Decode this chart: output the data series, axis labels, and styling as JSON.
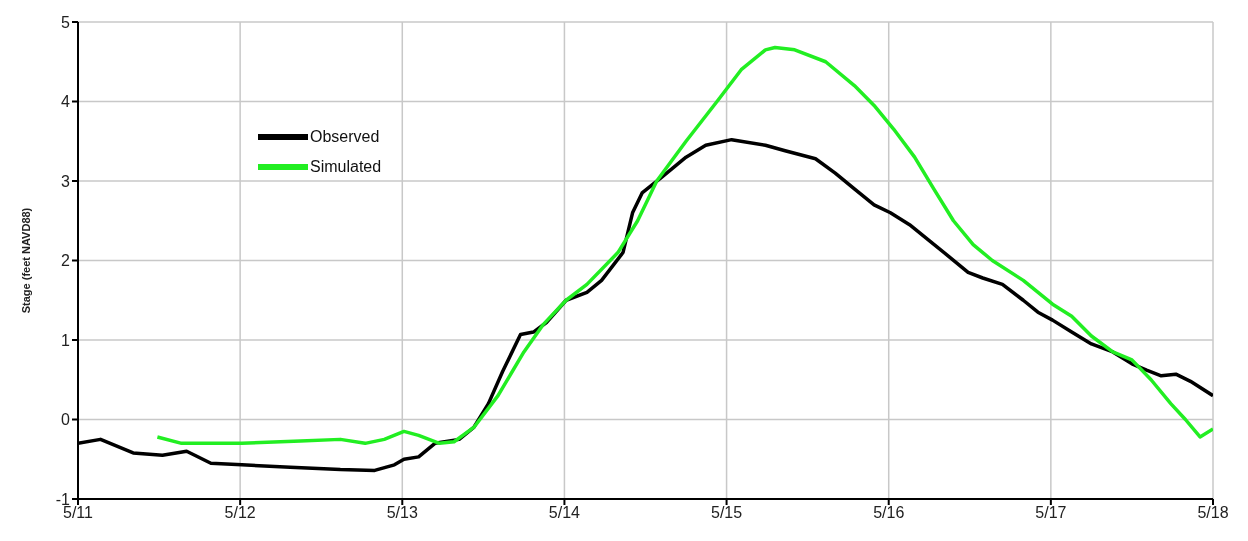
{
  "chart_data": {
    "type": "line",
    "ylabel": "Stage (feet NAVD88)",
    "xlim": [
      "--05-11",
      "--05-18"
    ],
    "ylim": [
      -1,
      5
    ],
    "xticks": [
      {
        "value": "--05-11",
        "label": "5/11"
      },
      {
        "value": "--05-12",
        "label": "5/12"
      },
      {
        "value": "--05-13",
        "label": "5/13"
      },
      {
        "value": "--05-14",
        "label": "5/14"
      },
      {
        "value": "--05-15",
        "label": "5/15"
      },
      {
        "value": "--05-16",
        "label": "5/16"
      },
      {
        "value": "--05-17",
        "label": "5/17"
      },
      {
        "value": "--05-18",
        "label": "5/18"
      }
    ],
    "yticks": [
      -1,
      0,
      1,
      2,
      3,
      4,
      5
    ],
    "grid": true,
    "legend": "top left",
    "marker": "none",
    "line_style": "solid",
    "series": [
      {
        "name": "Observed",
        "color": "#000000",
        "x": [
          "--05-11T00:00",
          "--05-11T03:20",
          "--05-11T08:10",
          "--05-11T12:30",
          "--05-11T16:05",
          "--05-11T19:40",
          "--05-12T00:15",
          "--05-12T07:25",
          "--05-12T14:50",
          "--05-12T19:55",
          "--05-12T22:50",
          "--05-13T00:15",
          "--05-13T02:25",
          "--05-13T04:50",
          "--05-13T08:25",
          "--05-13T10:35",
          "--05-13T12:45",
          "--05-13T14:50",
          "--05-13T17:30",
          "--05-13T19:25",
          "--05-13T21:20",
          "--05-14T00:15",
          "--05-14T03:20",
          "--05-14T05:30",
          "--05-14T08:40",
          "--05-14T10:05",
          "--05-14T11:30",
          "--05-14T14:25",
          "--05-14T18:00",
          "--05-14T20:55",
          "--05-15T00:45",
          "--05-15T05:45",
          "--05-15T08:40",
          "--05-15T13:10",
          "--05-15T16:05",
          "--05-15T18:55",
          "--05-15T21:50",
          "--05-16T00:15",
          "--05-16T03:05",
          "--05-16T06:00",
          "--05-16T08:55",
          "--05-16T11:45",
          "--05-16T13:55",
          "--05-16T16:50",
          "--05-16T19:55",
          "--05-16T22:05",
          "--05-17T00:15",
          "--05-17T03:05",
          "--05-17T06:00",
          "--05-17T09:10",
          "--05-17T12:00",
          "--05-17T14:10",
          "--05-17T16:20",
          "--05-17T18:30",
          "--05-17T20:40",
          "--05-18T00:00"
        ],
        "values": [
          -0.3,
          -0.25,
          -0.42,
          -0.45,
          -0.4,
          -0.55,
          -0.57,
          -0.6,
          -0.63,
          -0.64,
          -0.57,
          -0.5,
          -0.47,
          -0.3,
          -0.25,
          -0.1,
          0.2,
          0.6,
          1.07,
          1.1,
          1.22,
          1.5,
          1.6,
          1.75,
          2.1,
          2.6,
          2.85,
          3.05,
          3.3,
          3.45,
          3.52,
          3.45,
          3.38,
          3.28,
          3.1,
          2.9,
          2.7,
          2.6,
          2.45,
          2.25,
          2.05,
          1.85,
          1.78,
          1.7,
          1.5,
          1.35,
          1.25,
          1.1,
          0.95,
          0.85,
          0.7,
          0.62,
          0.55,
          0.57,
          0.48,
          0.3
        ]
      },
      {
        "name": "Simulated",
        "color": "#22ee22",
        "x": [
          "--05-11T11:45",
          "--05-11T15:20",
          "--05-12T00:15",
          "--05-12T08:55",
          "--05-12T14:50",
          "--05-12T18:30",
          "--05-12T21:20",
          "--05-13T00:15",
          "--05-13T02:25",
          "--05-13T05:30",
          "--05-13T07:40",
          "--05-13T10:35",
          "--05-13T14:10",
          "--05-13T18:00",
          "--05-13T20:55",
          "--05-14T00:15",
          "--05-14T03:20",
          "--05-14T07:55",
          "--05-14T10:50",
          "--05-14T13:40",
          "--05-14T18:00",
          "--05-14T22:35",
          "--05-15T02:10",
          "--05-15T05:45",
          "--05-15T07:10",
          "--05-15T10:05",
          "--05-15T14:40",
          "--05-15T18:55",
          "--05-15T21:50",
          "--05-16T00:45",
          "--05-16T03:50",
          "--05-16T06:40",
          "--05-16T09:35",
          "--05-16T12:30",
          "--05-16T15:20",
          "--05-16T19:55",
          "--05-17T00:15",
          "--05-17T03:05",
          "--05-17T06:00",
          "--05-17T09:10",
          "--05-17T12:00",
          "--05-17T14:50",
          "--05-17T17:45",
          "--05-17T19:55",
          "--05-17T22:05",
          "--05-18T00:00"
        ],
        "values": [
          -0.22,
          -0.3,
          -0.3,
          -0.27,
          -0.25,
          -0.3,
          -0.25,
          -0.15,
          -0.2,
          -0.3,
          -0.28,
          -0.1,
          0.3,
          0.85,
          1.2,
          1.5,
          1.7,
          2.1,
          2.5,
          3.0,
          3.5,
          4.0,
          4.4,
          4.65,
          4.68,
          4.65,
          4.5,
          4.2,
          3.95,
          3.65,
          3.3,
          2.9,
          2.5,
          2.2,
          2.0,
          1.75,
          1.45,
          1.3,
          1.05,
          0.85,
          0.75,
          0.5,
          0.2,
          0.0,
          -0.22,
          -0.12
        ]
      }
    ]
  }
}
